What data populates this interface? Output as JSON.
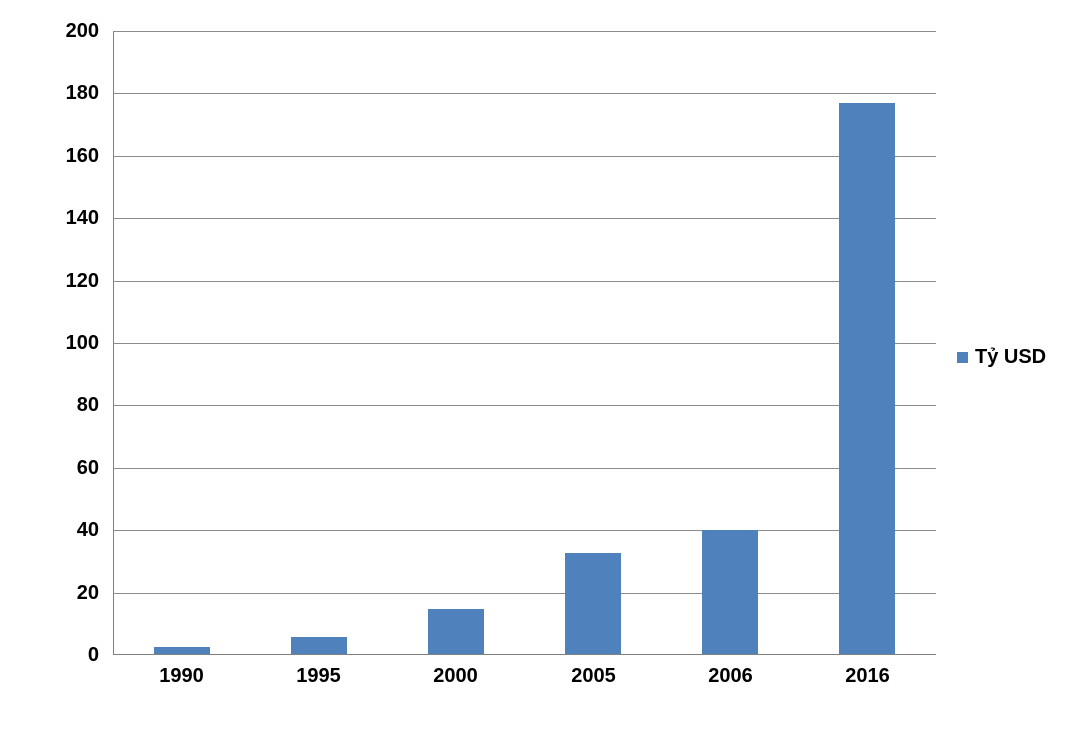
{
  "chart_data": {
    "type": "bar",
    "categories": [
      "1990",
      "1995",
      "2000",
      "2005",
      "2006",
      "2016"
    ],
    "series": [
      {
        "name": "Tỷ USD",
        "values": [
          2.4,
          5.4,
          14.5,
          32.4,
          39.8,
          176.6
        ]
      }
    ],
    "title": "",
    "xlabel": "",
    "ylabel": "",
    "ylim": [
      0,
      200
    ],
    "yticks": [
      0,
      20,
      40,
      60,
      80,
      100,
      120,
      140,
      160,
      180,
      200
    ],
    "grid": true,
    "legend_position": "right",
    "colors": {
      "bar": "#4F81BD",
      "gridline": "#8C8C8C",
      "axis": "#808080",
      "text": "#000000",
      "background": "#FFFFFF"
    }
  }
}
